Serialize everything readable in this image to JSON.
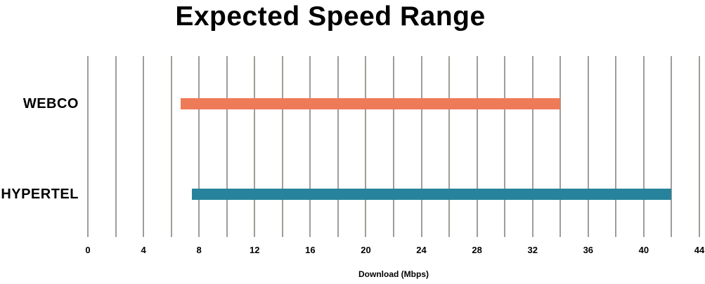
{
  "chart_data": {
    "type": "bar",
    "subtype": "horizontal_range_bar",
    "title": "Expected Speed Range",
    "xlabel": "Download (Mbps)",
    "xlim": [
      0,
      44
    ],
    "x_ticks": [
      0,
      4,
      8,
      12,
      16,
      20,
      24,
      28,
      32,
      36,
      40,
      44
    ],
    "gridline_step": 2,
    "grid": "vertical-only",
    "legend": "none",
    "categories": [
      "WEBCO",
      "HYPERTEL"
    ],
    "series": [
      {
        "name": "WEBCO",
        "range_mbps": [
          6.7,
          34
        ],
        "color": "#EE7B58"
      },
      {
        "name": "HYPERTEL",
        "range_mbps": [
          7.5,
          42
        ],
        "color": "#27839C"
      }
    ],
    "colors": {
      "gridline": "#A09D98",
      "text": "#000000",
      "background": "#FFFFFF",
      "webco_bar": "#EE7B58",
      "hypertel_bar": "#27839C"
    }
  }
}
